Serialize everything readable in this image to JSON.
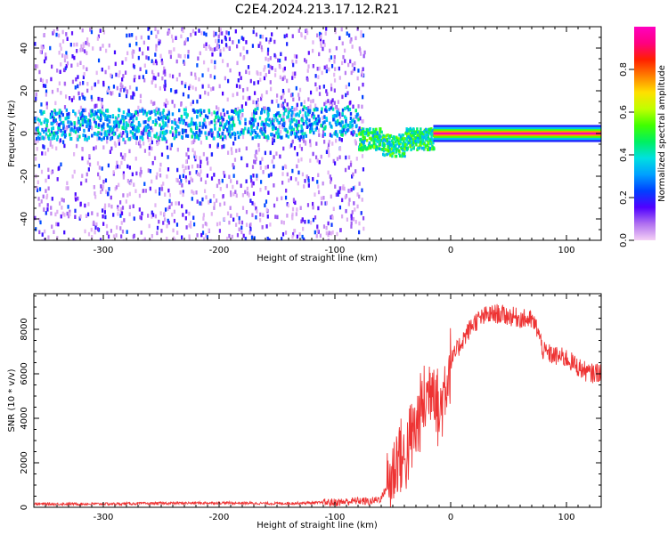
{
  "title": "C2E4.2024.213.17.12.R21",
  "chart_data": [
    {
      "type": "heatmap",
      "xlabel": "Height of straight line (km)",
      "ylabel": "Frequency (Hz)",
      "xlim": [
        -360,
        130
      ],
      "ylim": [
        -50,
        50
      ],
      "xticks": [
        -300,
        -200,
        -100,
        0,
        100
      ],
      "yticks": [
        -40,
        -20,
        0,
        20,
        40
      ],
      "colorbar": {
        "label": "Normalized spectral amplitude",
        "range": [
          0,
          1
        ],
        "ticks": [
          0.0,
          0.2,
          0.4,
          0.6,
          0.8
        ],
        "colors": [
          "#f5d0f5",
          "#b070f0",
          "#5000ff",
          "#0040ff",
          "#00a0ff",
          "#00e0e0",
          "#00f060",
          "#40ff00",
          "#c0ff00",
          "#ffe000",
          "#ff8000",
          "#ff2000",
          "#ff0080",
          "#ff00c0"
        ]
      },
      "features": [
        {
          "region": "noise",
          "x": [
            -360,
            -75
          ],
          "y": [
            -50,
            50
          ],
          "amplitude": [
            0.02,
            0.25
          ]
        },
        {
          "region": "signal-band",
          "x": [
            -360,
            -80
          ],
          "y_center": 5,
          "amplitude": [
            0.2,
            0.45
          ]
        },
        {
          "region": "transition",
          "x": [
            -80,
            -15
          ],
          "y_center": -2,
          "amplitude": [
            0.3,
            0.6
          ]
        },
        {
          "region": "carrier",
          "x": [
            -15,
            130
          ],
          "y_center": 0,
          "amplitude": [
            0.85,
            1.0
          ]
        }
      ]
    },
    {
      "type": "line",
      "xlabel": "Height of straight line (km)",
      "ylabel": "SNR (10 * v/v)",
      "xlim": [
        -360,
        130
      ],
      "ylim": [
        0,
        9600
      ],
      "xticks": [
        -300,
        -200,
        -100,
        0,
        100
      ],
      "yticks": [
        0,
        2000,
        4000,
        6000,
        8000
      ],
      "color": "#ee3333",
      "series": [
        {
          "x": [
            -360,
            -300,
            -250,
            -200,
            -150,
            -120,
            -100,
            -90,
            -80,
            -70,
            -60,
            -50,
            -45,
            -40,
            -35,
            -30,
            -25,
            -20,
            -15,
            -10,
            -5,
            0,
            10,
            20,
            30,
            40,
            50,
            60,
            70,
            75,
            80,
            90,
            100,
            110,
            120,
            130
          ],
          "values": [
            150,
            150,
            180,
            200,
            170,
            200,
            220,
            250,
            300,
            250,
            400,
            1500,
            2500,
            2000,
            3000,
            3500,
            4500,
            5000,
            6000,
            4000,
            5500,
            6500,
            7500,
            8300,
            8600,
            8700,
            8600,
            8500,
            8400,
            8000,
            7000,
            6800,
            6700,
            6300,
            6000,
            6100
          ]
        }
      ]
    }
  ]
}
